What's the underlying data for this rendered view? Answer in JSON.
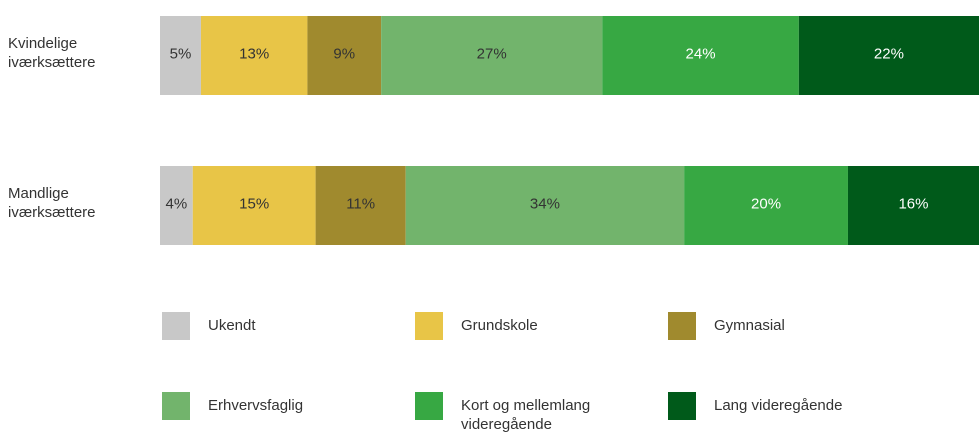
{
  "chart_data": {
    "type": "stacked-bar-horizontal",
    "categories": [
      "Kvindelige iværksættere",
      "Mandlige iværksættere"
    ],
    "series": [
      {
        "name": "Ukendt",
        "color": "#c8c8c8",
        "values": [
          5,
          4
        ],
        "value_labels": [
          "5%",
          "4%"
        ]
      },
      {
        "name": "Grundskole",
        "color": "#e8c547",
        "values": [
          13,
          15
        ],
        "value_labels": [
          "13%",
          "15%"
        ]
      },
      {
        "name": "Gymnasial",
        "color": "#a08a2e",
        "values": [
          9,
          11
        ],
        "value_labels": [
          "9%",
          "11%"
        ]
      },
      {
        "name": "Erhvervsfaglig",
        "color": "#72b46c",
        "values": [
          27,
          34
        ],
        "value_labels": [
          "27%",
          "34%"
        ]
      },
      {
        "name": "Kort og mellemlang videregående",
        "color": "#37a843",
        "values": [
          24,
          20
        ],
        "value_labels": [
          "24%",
          "20%"
        ]
      },
      {
        "name": "Lang videregående",
        "color": "#005a1a",
        "values": [
          22,
          16
        ],
        "value_labels": [
          "22%",
          "16%"
        ]
      }
    ]
  }
}
